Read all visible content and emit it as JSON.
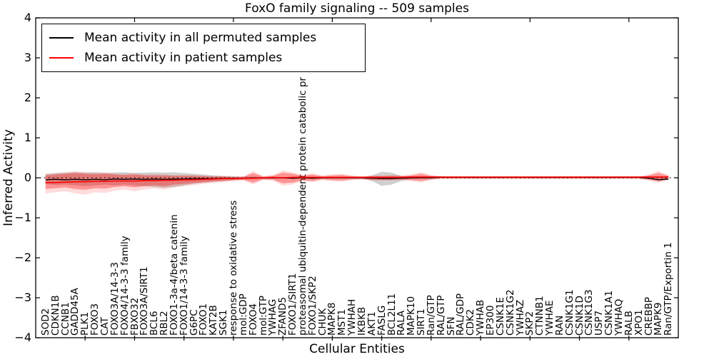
{
  "chart_data": {
    "type": "line",
    "title": "FoxO family signaling -- 509 samples",
    "xlabel": "Cellular Entities",
    "ylabel": "Inferred Activity",
    "ylim": [
      -4,
      4
    ],
    "yticks": [
      "4",
      "3",
      "2",
      "1",
      "0",
      "−1",
      "−2",
      "−3",
      "−4"
    ],
    "grid": false,
    "legend_position": "upper left",
    "zero_line_style": "dotted",
    "legend": [
      {
        "label": "Mean activity in all permuted samples",
        "color": "#000000"
      },
      {
        "label": "Mean activity in patient samples",
        "color": "#ff0000"
      }
    ],
    "categories": [
      "SOD2",
      "CDKN1B",
      "CCNB1",
      "GADD45A",
      "PLK1",
      "FOXO3",
      "CAT",
      "FOXO3A/14-3-3",
      "FOXO4/14-3-3 family",
      "FBXO32",
      "FOXO3A/SIRT1",
      "BCL6",
      "RBL2",
      "FOXO1-3a-4/beta catenin",
      "FOXO1/14-3-3 family",
      "G6PC",
      "FOXO1",
      "KAT2B",
      "SGK1",
      "response to oxidative stress",
      "mol:GDP",
      "FOXO4",
      "mol:GTP",
      "YWHAG",
      "ZFAND5",
      "FOXO1/SIRT1",
      "proteasomal ubiquitin-dependent protein catabolic pr",
      "FOXO1/SKP2",
      "CHUK",
      "MAPK8",
      "MST1",
      "YWHAH",
      "IKBKB",
      "AKT1",
      "FASLG",
      "BCL2L11",
      "RALA",
      "MAPK10",
      "SIRT1",
      "Ran/GTP",
      "RAL/GTP",
      "SFN",
      "RAL/GDP",
      "CDK2",
      "YWHAB",
      "EP300",
      "CSNK1E",
      "CSNK1G2",
      "YWHAZ",
      "SKP2",
      "CTNNB1",
      "YWHAE",
      "RAN",
      "CSNK1G1",
      "CSNK1D",
      "CSNK1G3",
      "USP7",
      "CSNK1A1",
      "YWHAQ",
      "RALB",
      "XPO1",
      "CREBBP",
      "MAPK9",
      "Ran/GTP/Exportin 1"
    ],
    "series": [
      {
        "name": "Mean activity in all permuted samples",
        "color": "#000000",
        "values": [
          -0.05,
          -0.04,
          -0.05,
          -0.04,
          -0.05,
          -0.04,
          -0.05,
          -0.03,
          -0.04,
          -0.03,
          -0.04,
          -0.03,
          -0.04,
          -0.03,
          -0.03,
          -0.02,
          -0.02,
          -0.02,
          -0.01,
          -0.01,
          -0.01,
          0,
          0,
          0,
          0,
          -0.01,
          0,
          -0.01,
          0,
          0,
          0,
          0,
          0,
          -0.01,
          -0.02,
          -0.02,
          -0.01,
          0,
          0,
          0,
          0.01,
          0.01,
          0.01,
          0.01,
          0.01,
          0.01,
          0.01,
          0.01,
          0.01,
          0.01,
          0.01,
          0.01,
          0.01,
          0.01,
          0.01,
          0.01,
          0.01,
          0.01,
          0.01,
          0.01,
          0.01,
          -0.01,
          -0.05,
          -0.03
        ]
      },
      {
        "name": "Mean activity in patient samples",
        "color": "#ff0000",
        "values": [
          -0.12,
          -0.12,
          -0.11,
          -0.1,
          -0.1,
          -0.09,
          -0.09,
          -0.08,
          -0.08,
          -0.08,
          -0.07,
          -0.07,
          -0.06,
          -0.06,
          -0.05,
          -0.05,
          -0.04,
          -0.03,
          -0.02,
          -0.02,
          -0.01,
          -0.01,
          0,
          0.01,
          0,
          0.01,
          0.01,
          0.01,
          0.01,
          0.01,
          0.01,
          0.01,
          0.01,
          0.01,
          0.01,
          0.01,
          0.01,
          0.02,
          0.02,
          0.02,
          0.02,
          0.02,
          0.02,
          0.02,
          0.02,
          0.02,
          0.02,
          0.02,
          0.02,
          0.02,
          0.02,
          0.02,
          0.02,
          0.02,
          0.02,
          0.02,
          0.02,
          0.02,
          0.02,
          0.02,
          0.02,
          0.02,
          0.02,
          0.02
        ]
      }
    ],
    "bands": [
      {
        "name": "permuted-std-band",
        "fill": "rgba(120,120,120,0.35)",
        "upper": [
          0.1,
          0.12,
          0.13,
          0.14,
          0.13,
          0.14,
          0.12,
          0.13,
          0.14,
          0.12,
          0.13,
          0.14,
          0.13,
          0.14,
          0.12,
          0.1,
          0.08,
          0.06,
          0.05,
          0.04,
          0.03,
          0.03,
          0.02,
          0.02,
          0.02,
          0.02,
          0.02,
          0.02,
          0.02,
          0.02,
          0.01,
          0.01,
          0.01,
          0.06,
          0.15,
          0.13,
          0.05,
          0.02,
          0.02,
          0.01,
          0.01,
          0.01,
          0.01,
          0.01,
          0.01,
          0.01,
          0.01,
          0.01,
          0.01,
          0.01,
          0.01,
          0.01,
          0.01,
          0.01,
          0.01,
          0.01,
          0.01,
          0.01,
          0.01,
          0.01,
          0.01,
          0.02,
          0.03,
          0.02
        ],
        "lower": [
          -0.16,
          -0.18,
          -0.17,
          -0.19,
          -0.21,
          -0.19,
          -0.17,
          -0.19,
          -0.17,
          -0.19,
          -0.21,
          -0.23,
          -0.25,
          -0.23,
          -0.19,
          -0.15,
          -0.12,
          -0.1,
          -0.08,
          -0.06,
          -0.05,
          -0.04,
          -0.03,
          -0.03,
          -0.03,
          -0.03,
          -0.02,
          -0.03,
          -0.02,
          -0.02,
          -0.02,
          -0.02,
          -0.02,
          -0.08,
          -0.2,
          -0.17,
          -0.08,
          -0.03,
          -0.02,
          -0.01,
          -0.01,
          -0.01,
          -0.01,
          -0.01,
          -0.01,
          -0.01,
          -0.01,
          -0.01,
          -0.01,
          -0.01,
          -0.01,
          -0.01,
          -0.01,
          -0.01,
          -0.01,
          -0.01,
          -0.01,
          -0.01,
          -0.01,
          -0.01,
          -0.01,
          -0.03,
          -0.07,
          -0.05
        ]
      },
      {
        "name": "patient-std-band",
        "fill": "rgba(255,0,0,0.32)",
        "halo_fill": "rgba(255,0,0,0.14)",
        "upper": [
          0.06,
          0.08,
          0.1,
          0.12,
          0.1,
          0.09,
          0.1,
          0.08,
          0.07,
          0.08,
          0.06,
          0.06,
          0.06,
          0.05,
          0.05,
          0.05,
          0.04,
          0.03,
          0.03,
          0.02,
          0.02,
          0.12,
          0.03,
          0.05,
          0.13,
          0.1,
          0.05,
          0.08,
          0.04,
          0.06,
          0.07,
          0.04,
          0.03,
          0.04,
          0.04,
          0.05,
          0.04,
          0.06,
          0.1,
          0.05,
          0.03,
          0.02,
          0.02,
          0.02,
          0.02,
          0.02,
          0.02,
          0.02,
          0.02,
          0.02,
          0.02,
          0.02,
          0.02,
          0.02,
          0.02,
          0.02,
          0.02,
          0.02,
          0.02,
          0.02,
          0.02,
          0.06,
          0.12,
          0.05
        ],
        "lower": [
          -0.28,
          -0.26,
          -0.24,
          -0.28,
          -0.3,
          -0.26,
          -0.27,
          -0.23,
          -0.21,
          -0.24,
          -0.21,
          -0.19,
          -0.21,
          -0.17,
          -0.15,
          -0.13,
          -0.11,
          -0.09,
          -0.08,
          -0.06,
          -0.05,
          -0.12,
          -0.04,
          -0.05,
          -0.14,
          -0.12,
          -0.06,
          -0.08,
          -0.04,
          -0.06,
          -0.07,
          -0.04,
          -0.03,
          -0.05,
          -0.05,
          -0.05,
          -0.04,
          -0.06,
          -0.08,
          -0.04,
          -0.02,
          -0.02,
          -0.02,
          -0.02,
          -0.02,
          -0.02,
          -0.02,
          -0.02,
          -0.02,
          -0.02,
          -0.02,
          -0.02,
          -0.02,
          -0.02,
          -0.02,
          -0.02,
          -0.02,
          -0.02,
          -0.02,
          -0.02,
          -0.02,
          -0.05,
          -0.09,
          -0.04
        ]
      }
    ]
  }
}
